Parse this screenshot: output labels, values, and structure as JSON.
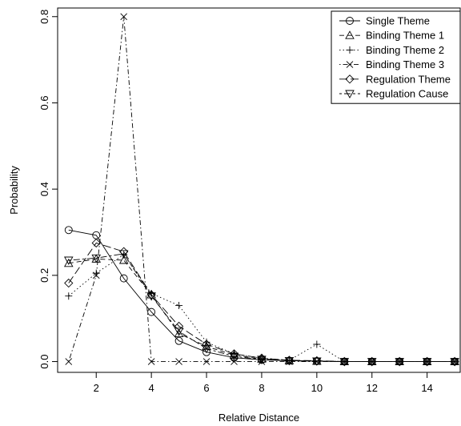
{
  "chart_data": {
    "type": "line",
    "xlabel": "Relative Distance",
    "ylabel": "Probability",
    "xlim": [
      0.6,
      15.2
    ],
    "ylim": [
      -0.025,
      0.82
    ],
    "xticks": [
      "2",
      "4",
      "6",
      "8",
      "10",
      "12",
      "14"
    ],
    "yticks": [
      "0.0",
      "0.2",
      "0.4",
      "0.6",
      "0.8"
    ],
    "legend_position": "top-right",
    "grid": false,
    "x": [
      1,
      2,
      3,
      4,
      5,
      6,
      7,
      8,
      9,
      10,
      11,
      12,
      13,
      14,
      15
    ],
    "series": [
      {
        "name": "Single Theme",
        "marker": "circle",
        "dash": "solid",
        "values": [
          0.305,
          0.293,
          0.193,
          0.115,
          0.048,
          0.022,
          0.009,
          0.004,
          0.002,
          0.001,
          0.0,
          0.0,
          0.0,
          0.0,
          0.0
        ]
      },
      {
        "name": "Binding Theme 1",
        "marker": "triangle-up",
        "dash": "dashed",
        "values": [
          0.228,
          0.238,
          0.235,
          0.155,
          0.065,
          0.035,
          0.015,
          0.006,
          0.002,
          0.001,
          0.0,
          0.0,
          0.0,
          0.0,
          0.0
        ]
      },
      {
        "name": "Binding Theme 2",
        "marker": "plus",
        "dash": "dotted",
        "values": [
          0.152,
          0.205,
          0.248,
          0.158,
          0.13,
          0.045,
          0.018,
          0.008,
          0.003,
          0.04,
          0.0,
          0.0,
          0.0,
          0.0,
          0.0
        ]
      },
      {
        "name": "Binding Theme 3",
        "marker": "cross",
        "dash": "dotdash",
        "values": [
          0.0,
          0.2,
          0.8,
          0.0,
          0.0,
          0.0,
          0.0,
          0.0,
          0.0,
          0.0,
          0.0,
          0.0,
          0.0,
          0.0,
          0.0
        ]
      },
      {
        "name": "Regulation Theme",
        "marker": "diamond",
        "dash": "longdash",
        "values": [
          0.182,
          0.275,
          0.255,
          0.155,
          0.082,
          0.04,
          0.018,
          0.008,
          0.003,
          0.002,
          0.0,
          0.0,
          0.0,
          0.0,
          0.0
        ]
      },
      {
        "name": "Regulation Cause",
        "marker": "triangle-down",
        "dash": "twodash",
        "values": [
          0.235,
          0.24,
          0.25,
          0.152,
          0.07,
          0.03,
          0.012,
          0.005,
          0.002,
          0.001,
          0.0,
          0.0,
          0.0,
          0.0,
          0.0
        ]
      }
    ]
  }
}
